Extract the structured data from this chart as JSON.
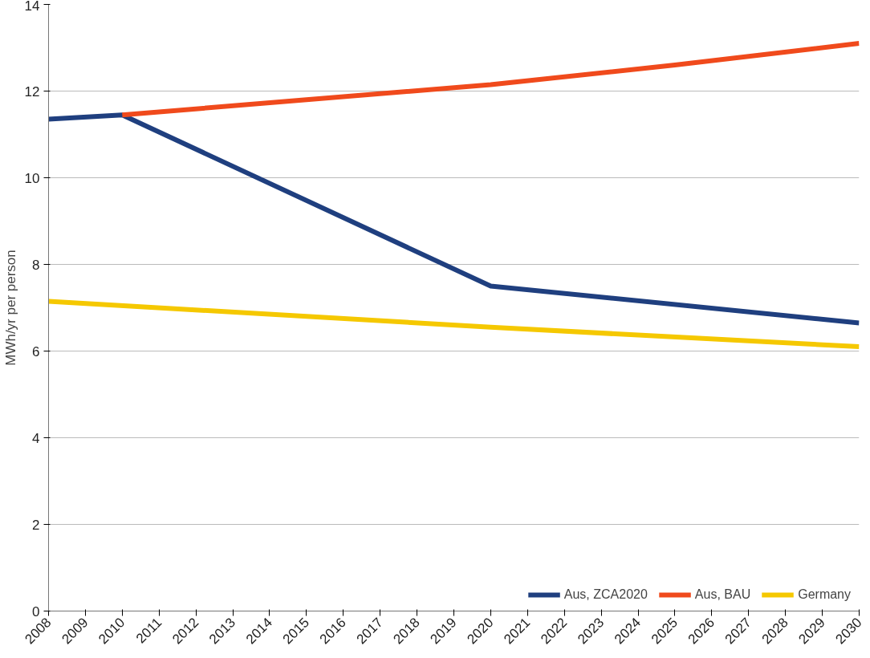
{
  "chart_data": {
    "type": "line",
    "ylabel": "MWh/yr per person",
    "xlim": [
      2008,
      2030
    ],
    "xticks": [
      2008,
      2009,
      2010,
      2011,
      2012,
      2013,
      2014,
      2015,
      2016,
      2017,
      2018,
      2019,
      2020,
      2021,
      2022,
      2023,
      2024,
      2025,
      2026,
      2027,
      2028,
      2029,
      2030
    ],
    "ylim": [
      0,
      14
    ],
    "yticks": [
      0,
      2,
      4,
      6,
      8,
      10,
      12,
      14
    ],
    "grid": "y",
    "legend": "bottom right",
    "series": [
      {
        "name": "Aus, ZCA2020",
        "color": "#1f3f7f",
        "x": [
          2008,
          2010,
          2020,
          2030
        ],
        "values": [
          11.35,
          11.45,
          7.5,
          6.65
        ]
      },
      {
        "name": "Aus, BAU",
        "color": "#f04a1c",
        "x": [
          2010,
          2015,
          2020,
          2025,
          2030
        ],
        "values": [
          11.45,
          11.8,
          12.15,
          12.6,
          13.1
        ]
      },
      {
        "name": "Germany",
        "color": "#f5c800",
        "x": [
          2008,
          2020,
          2030
        ],
        "values": [
          7.15,
          6.55,
          6.1
        ]
      }
    ]
  }
}
